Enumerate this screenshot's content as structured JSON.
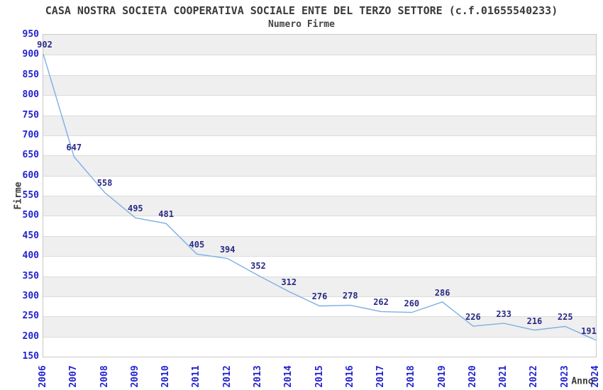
{
  "header": {
    "title": "CASA NOSTRA SOCIETA COOPERATIVA SOCIALE ENTE DEL TERZO SETTORE (c.f.01655540233)",
    "subtitle": "Numero Firme"
  },
  "chart_data": {
    "type": "line",
    "title": "CASA NOSTRA SOCIETA COOPERATIVA SOCIALE ENTE DEL TERZO SETTORE (c.f.01655540233)",
    "subtitle": "Numero Firme",
    "xlabel": "Anno",
    "ylabel": "Firme",
    "categories": [
      "2006",
      "2007",
      "2008",
      "2009",
      "2010",
      "2011",
      "2012",
      "2013",
      "2014",
      "2015",
      "2016",
      "2017",
      "2018",
      "2019",
      "2020",
      "2021",
      "2022",
      "2023",
      "2024"
    ],
    "series": [
      {
        "name": "Numero Firme",
        "values": [
          902,
          647,
          558,
          495,
          481,
          405,
          394,
          352,
          312,
          276,
          278,
          262,
          260,
          286,
          226,
          233,
          216,
          225,
          191
        ]
      }
    ],
    "ylim": [
      150,
      950
    ],
    "ytick_step": 50,
    "grid": "horizontal-bands-alternating",
    "legend": "none",
    "point_labels_visible": true,
    "colors": {
      "line": "#7dafe4",
      "axis_tick_label": "#2323d0",
      "point_label": "#2a2a85",
      "band_fill": "#efefef",
      "gridline": "#dbdbdb",
      "plot_border": "#c8c8c8",
      "title_text": "#3a3a3a"
    }
  }
}
